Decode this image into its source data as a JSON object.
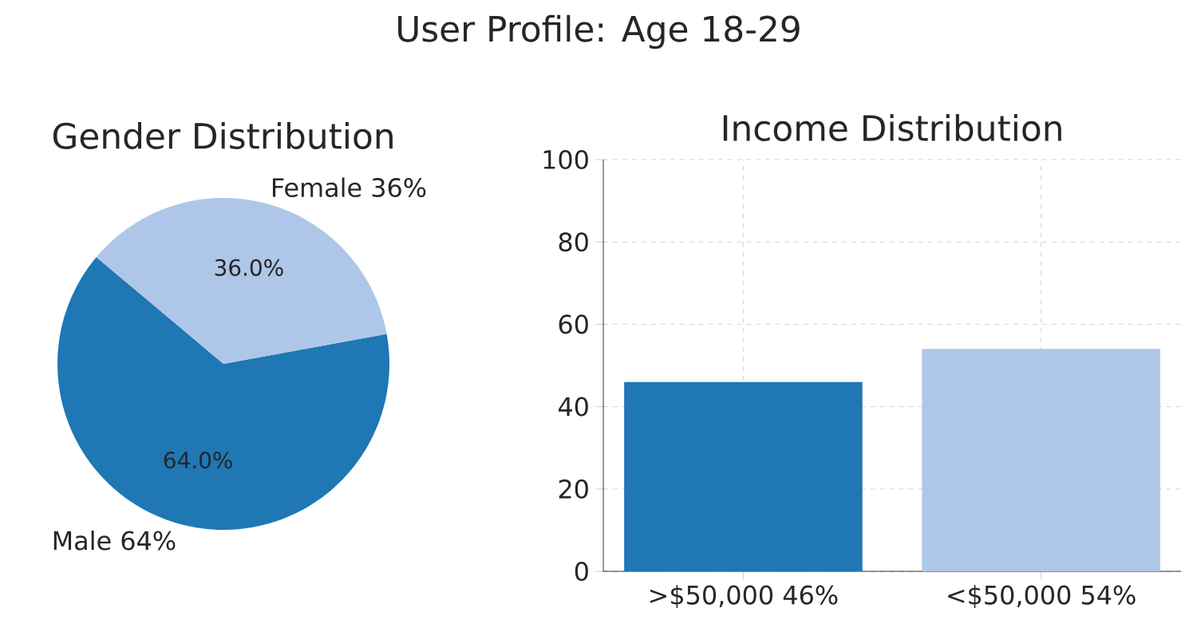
{
  "chart_data": [
    {
      "type": "pie",
      "title": "Gender Distribution",
      "annotations": [
        "User Profile: Age 18-29"
      ],
      "categories": [
        "Male 64%",
        "Female 36%"
      ],
      "values": [
        64,
        36
      ],
      "colors": [
        "#1f77b4",
        "#aec7e8"
      ],
      "value_labels": [
        "64.0%",
        "36.0%"
      ]
    },
    {
      "type": "bar",
      "title": "Income Distribution",
      "categories": [
        ">$50,000 46%",
        "<$50,000 54%"
      ],
      "values": [
        46,
        54
      ],
      "colors": [
        "#1f77b4",
        "#aec7e8"
      ],
      "ylim": [
        0,
        100
      ],
      "yticks": [
        0,
        20,
        40,
        60,
        80,
        100
      ],
      "grid": true
    }
  ]
}
